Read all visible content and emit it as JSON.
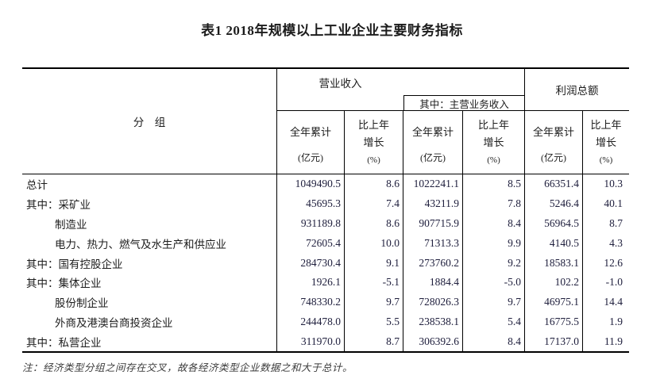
{
  "title": "表1  2018年规模以上工业企业主要财务指标",
  "colors": {
    "border": "#000000",
    "text": "#1c1c1c",
    "numtext": "#20203e",
    "notetext": "#3b3b3b",
    "bg": "#ffffff"
  },
  "table": {
    "group_header": "分　组",
    "col_groups": [
      {
        "label": "营业收入",
        "sub": "其中：主营业务收入"
      },
      {
        "label": "利润总额"
      }
    ],
    "sub_headers": [
      {
        "l1": "全年累计",
        "unit": "(亿元)"
      },
      {
        "l1": "比上年",
        "l2": "增长",
        "unit": "(%)"
      },
      {
        "l1": "全年累计",
        "unit": "(亿元)"
      },
      {
        "l1": "比上年",
        "l2": "增长",
        "unit": "(%)"
      },
      {
        "l1": "全年累计",
        "unit": "(亿元)"
      },
      {
        "l1": "比上年",
        "l2": "增长",
        "unit": "(%)"
      }
    ],
    "rows": [
      {
        "prefix": "",
        "label": "总计",
        "values": [
          "1049490.5",
          "8.6",
          "1022241.1",
          "8.5",
          "66351.4",
          "10.3"
        ]
      },
      {
        "prefix": "其中：",
        "label": "采矿业",
        "values": [
          "45695.3",
          "7.4",
          "43211.9",
          "7.8",
          "5246.4",
          "40.1"
        ]
      },
      {
        "prefix": "",
        "label": "制造业",
        "values": [
          "931189.8",
          "8.6",
          "907715.9",
          "8.4",
          "56964.5",
          "8.7"
        ]
      },
      {
        "prefix": "",
        "label": "电力、热力、燃气及水生产和供应业",
        "values": [
          "72605.4",
          "10.0",
          "71313.3",
          "9.9",
          "4140.5",
          "4.3"
        ]
      },
      {
        "prefix": "其中：",
        "label": "国有控股企业",
        "values": [
          "284730.4",
          "9.1",
          "273760.2",
          "9.2",
          "18583.1",
          "12.6"
        ]
      },
      {
        "prefix": "其中：",
        "label": "集体企业",
        "values": [
          "1926.1",
          "-5.1",
          "1884.4",
          "-5.0",
          "102.2",
          "-1.0"
        ]
      },
      {
        "prefix": "",
        "label": "股份制企业",
        "values": [
          "748330.2",
          "9.7",
          "728026.3",
          "9.7",
          "46975.1",
          "14.4"
        ]
      },
      {
        "prefix": "",
        "label": "外商及港澳台商投资企业",
        "values": [
          "244478.0",
          "5.5",
          "238538.1",
          "5.4",
          "16775.5",
          "1.9"
        ]
      },
      {
        "prefix": "其中：",
        "label": "私营企业",
        "values": [
          "311970.0",
          "8.7",
          "306392.6",
          "8.4",
          "17137.0",
          "11.9"
        ]
      }
    ]
  },
  "note": "注：经济类型分组之间存在交叉，故各经济类型企业数据之和大于总计。"
}
